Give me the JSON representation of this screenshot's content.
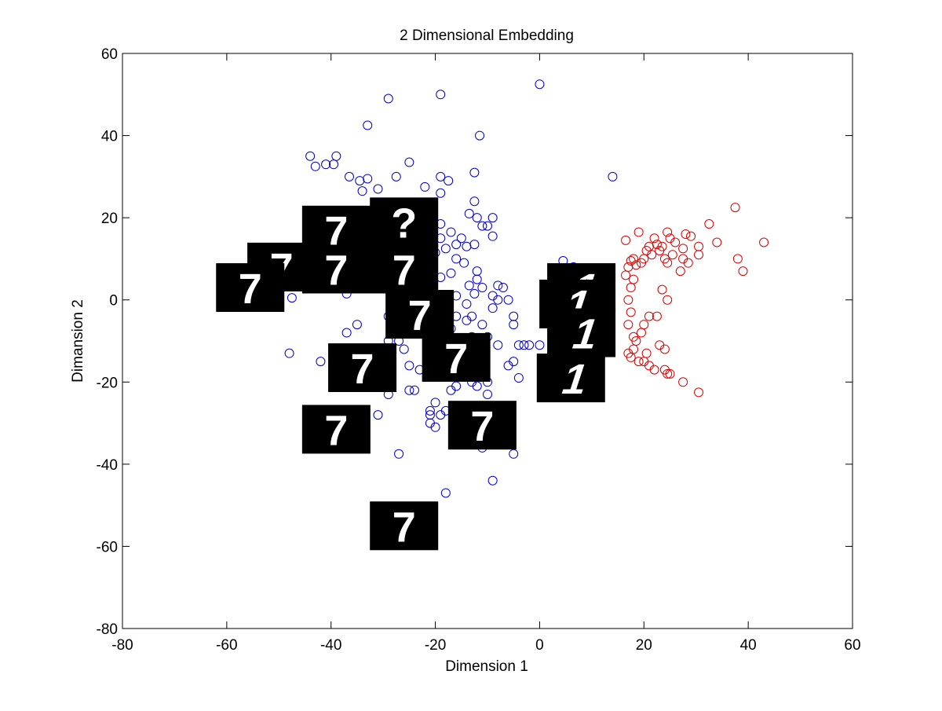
{
  "chart_data": {
    "type": "scatter",
    "title": "2 Dimensional Embedding",
    "xlabel": "Dimension 1",
    "ylabel": "Dimansion 2",
    "xlim": [
      -80,
      60
    ],
    "ylim": [
      -80,
      60
    ],
    "xticks": [
      -80,
      -60,
      -40,
      -20,
      0,
      20,
      40,
      60
    ],
    "yticks": [
      -80,
      -60,
      -40,
      -20,
      0,
      20,
      40,
      60
    ],
    "grid": false,
    "colors": {
      "series_blue": "#0000cc",
      "series_red": "#dd0000",
      "thumbnail_bg": "#000000",
      "digit": "#ffffff"
    },
    "series": [
      {
        "color": "#0000cc",
        "marker": "circle",
        "points": [
          [
            0,
            52.5
          ],
          [
            -29,
            49
          ],
          [
            -19,
            50
          ],
          [
            -33,
            42.5
          ],
          [
            -11.5,
            40
          ],
          [
            -44,
            35
          ],
          [
            -39,
            35
          ],
          [
            -43,
            32.5
          ],
          [
            -41,
            33
          ],
          [
            -39.5,
            33
          ],
          [
            -25,
            33.5
          ],
          [
            -36.5,
            30
          ],
          [
            -34.5,
            29
          ],
          [
            -33,
            29.5
          ],
          [
            -27.5,
            30
          ],
          [
            -19,
            30
          ],
          [
            -12.5,
            31
          ],
          [
            -17.5,
            29
          ],
          [
            -34,
            26.5
          ],
          [
            -31,
            27
          ],
          [
            -22,
            27.5
          ],
          [
            -19,
            26
          ],
          [
            -12.5,
            24
          ],
          [
            -13.5,
            21
          ],
          [
            -12,
            20
          ],
          [
            -9,
            20
          ],
          [
            -19,
            18.5
          ],
          [
            -11,
            18
          ],
          [
            -10,
            18
          ],
          [
            -17,
            16.5
          ],
          [
            -15,
            15
          ],
          [
            -19,
            15
          ],
          [
            -9,
            15.5
          ],
          [
            -22,
            13
          ],
          [
            -18,
            12.5
          ],
          [
            -16,
            13.5
          ],
          [
            -12.5,
            13.5
          ],
          [
            -14,
            13
          ],
          [
            -20,
            11.5
          ],
          [
            -16,
            10
          ],
          [
            -14.5,
            9
          ],
          [
            -12,
            7
          ],
          [
            -17,
            6.5
          ],
          [
            -19,
            5.5
          ],
          [
            -13.5,
            3.5
          ],
          [
            -11,
            3
          ],
          [
            -8,
            3.5
          ],
          [
            -7,
            3
          ],
          [
            -12.5,
            1.5
          ],
          [
            -16,
            1
          ],
          [
            -9,
            1
          ],
          [
            -6,
            0
          ],
          [
            -14,
            -1
          ],
          [
            -18,
            -2
          ],
          [
            -9,
            -2
          ],
          [
            -16,
            -4
          ],
          [
            -13,
            -4
          ],
          [
            -14,
            -5
          ],
          [
            -5,
            -4
          ],
          [
            -5,
            -6
          ],
          [
            -11,
            -6
          ],
          [
            -17,
            -7
          ],
          [
            -25,
            -8
          ],
          [
            -23,
            -7
          ],
          [
            -21,
            -9
          ],
          [
            -13,
            -9
          ],
          [
            -10,
            -9
          ],
          [
            -35,
            -6
          ],
          [
            -37,
            -8
          ],
          [
            -27,
            -10
          ],
          [
            -26,
            -12
          ],
          [
            -4,
            -11
          ],
          [
            -3,
            -11
          ],
          [
            -8,
            -11
          ],
          [
            -2,
            -11
          ],
          [
            -29,
            -10
          ],
          [
            -32,
            -12
          ],
          [
            -38,
            -12
          ],
          [
            -48,
            -13
          ],
          [
            -42,
            -15
          ],
          [
            -25,
            -16
          ],
          [
            -23,
            -17
          ],
          [
            -5,
            -15
          ],
          [
            -6,
            -16
          ],
          [
            -4,
            -19
          ],
          [
            -13,
            -20
          ],
          [
            -17,
            -22
          ],
          [
            -16,
            -21
          ],
          [
            -12,
            -21
          ],
          [
            -10,
            -20
          ],
          [
            -24,
            -22
          ],
          [
            -25,
            -22
          ],
          [
            -29,
            -23
          ],
          [
            -20,
            -25
          ],
          [
            -21,
            -27
          ],
          [
            -19,
            -28
          ],
          [
            -21,
            -28
          ],
          [
            -18,
            -27
          ],
          [
            -31,
            -28
          ],
          [
            -21,
            -30
          ],
          [
            -20,
            -31
          ],
          [
            -10,
            -23
          ],
          [
            -6,
            -30
          ],
          [
            -11,
            -36
          ],
          [
            -27,
            -37.5
          ],
          [
            -5,
            -37.5
          ],
          [
            -9,
            -44
          ],
          [
            -18,
            -47
          ],
          [
            -47.5,
            0.5
          ],
          [
            -37,
            1.5
          ],
          [
            -29,
            -4
          ],
          [
            0,
            -11
          ],
          [
            4.5,
            9.5
          ],
          [
            6.5,
            8
          ],
          [
            14,
            30
          ],
          [
            -12,
            5
          ],
          [
            -22,
            20
          ],
          [
            -8,
            0
          ]
        ]
      },
      {
        "color": "#dd0000",
        "marker": "circle",
        "points": [
          [
            37.5,
            22.5
          ],
          [
            43,
            14
          ],
          [
            38,
            10
          ],
          [
            39,
            7
          ],
          [
            32.5,
            18.5
          ],
          [
            34,
            14
          ],
          [
            30.5,
            13
          ],
          [
            30.5,
            11
          ],
          [
            28,
            16
          ],
          [
            29,
            15.5
          ],
          [
            27.5,
            12.5
          ],
          [
            27.5,
            10
          ],
          [
            28.5,
            9
          ],
          [
            27,
            7
          ],
          [
            25,
            15
          ],
          [
            24.5,
            16.5
          ],
          [
            23.5,
            13
          ],
          [
            23,
            12
          ],
          [
            22,
            15
          ],
          [
            22.5,
            13.5
          ],
          [
            21,
            13
          ],
          [
            21.5,
            11
          ],
          [
            20,
            10
          ],
          [
            19.5,
            9
          ],
          [
            18.5,
            8.5
          ],
          [
            18,
            10
          ],
          [
            17.5,
            9.5
          ],
          [
            17,
            8
          ],
          [
            16.5,
            14.5
          ],
          [
            19,
            16.5
          ],
          [
            20.5,
            12
          ],
          [
            24,
            10
          ],
          [
            24.5,
            9
          ],
          [
            26,
            14
          ],
          [
            25.5,
            11
          ],
          [
            23.5,
            2.5
          ],
          [
            24.5,
            0
          ],
          [
            22.5,
            -4
          ],
          [
            21,
            -4
          ],
          [
            20,
            -6
          ],
          [
            19.5,
            -8
          ],
          [
            18.5,
            -10
          ],
          [
            18,
            -12
          ],
          [
            17,
            -13
          ],
          [
            17.5,
            -14
          ],
          [
            19,
            -15
          ],
          [
            20,
            -15
          ],
          [
            21,
            -16
          ],
          [
            22,
            -17
          ],
          [
            24,
            -17
          ],
          [
            24.5,
            -18
          ],
          [
            25,
            -18
          ],
          [
            27.5,
            -20
          ],
          [
            30.5,
            -22.5
          ],
          [
            24,
            -12
          ],
          [
            23,
            -11
          ],
          [
            20.5,
            -13
          ],
          [
            18,
            -9
          ],
          [
            17,
            -6
          ],
          [
            17.5,
            -3
          ],
          [
            17,
            0
          ],
          [
            17.5,
            3
          ],
          [
            18,
            5
          ],
          [
            16.5,
            6
          ]
        ]
      }
    ],
    "thumbnails": [
      {
        "digit": "7",
        "x": -39,
        "y": 17
      },
      {
        "digit": "?",
        "x": -26,
        "y": 19
      },
      {
        "digit": "7",
        "x": -49.5,
        "y": 8
      },
      {
        "digit": "7",
        "x": -39,
        "y": 7.5
      },
      {
        "digit": "7",
        "x": -26,
        "y": 7.5
      },
      {
        "digit": "7",
        "x": -55.5,
        "y": 3
      },
      {
        "digit": "7",
        "x": -23,
        "y": -3.5
      },
      {
        "digit": "7",
        "x": -34,
        "y": -16.5
      },
      {
        "digit": "7",
        "x": -16,
        "y": -14
      },
      {
        "digit": "7",
        "x": -39,
        "y": -31.5
      },
      {
        "digit": "7",
        "x": -11,
        "y": -30.5
      },
      {
        "digit": "7",
        "x": -26,
        "y": -55
      },
      {
        "digit": "1",
        "x": 8,
        "y": 3
      },
      {
        "digit": "1",
        "x": 6.5,
        "y": -1
      },
      {
        "digit": "1",
        "x": 8,
        "y": -8
      },
      {
        "digit": "1",
        "x": 6,
        "y": -19
      }
    ]
  }
}
